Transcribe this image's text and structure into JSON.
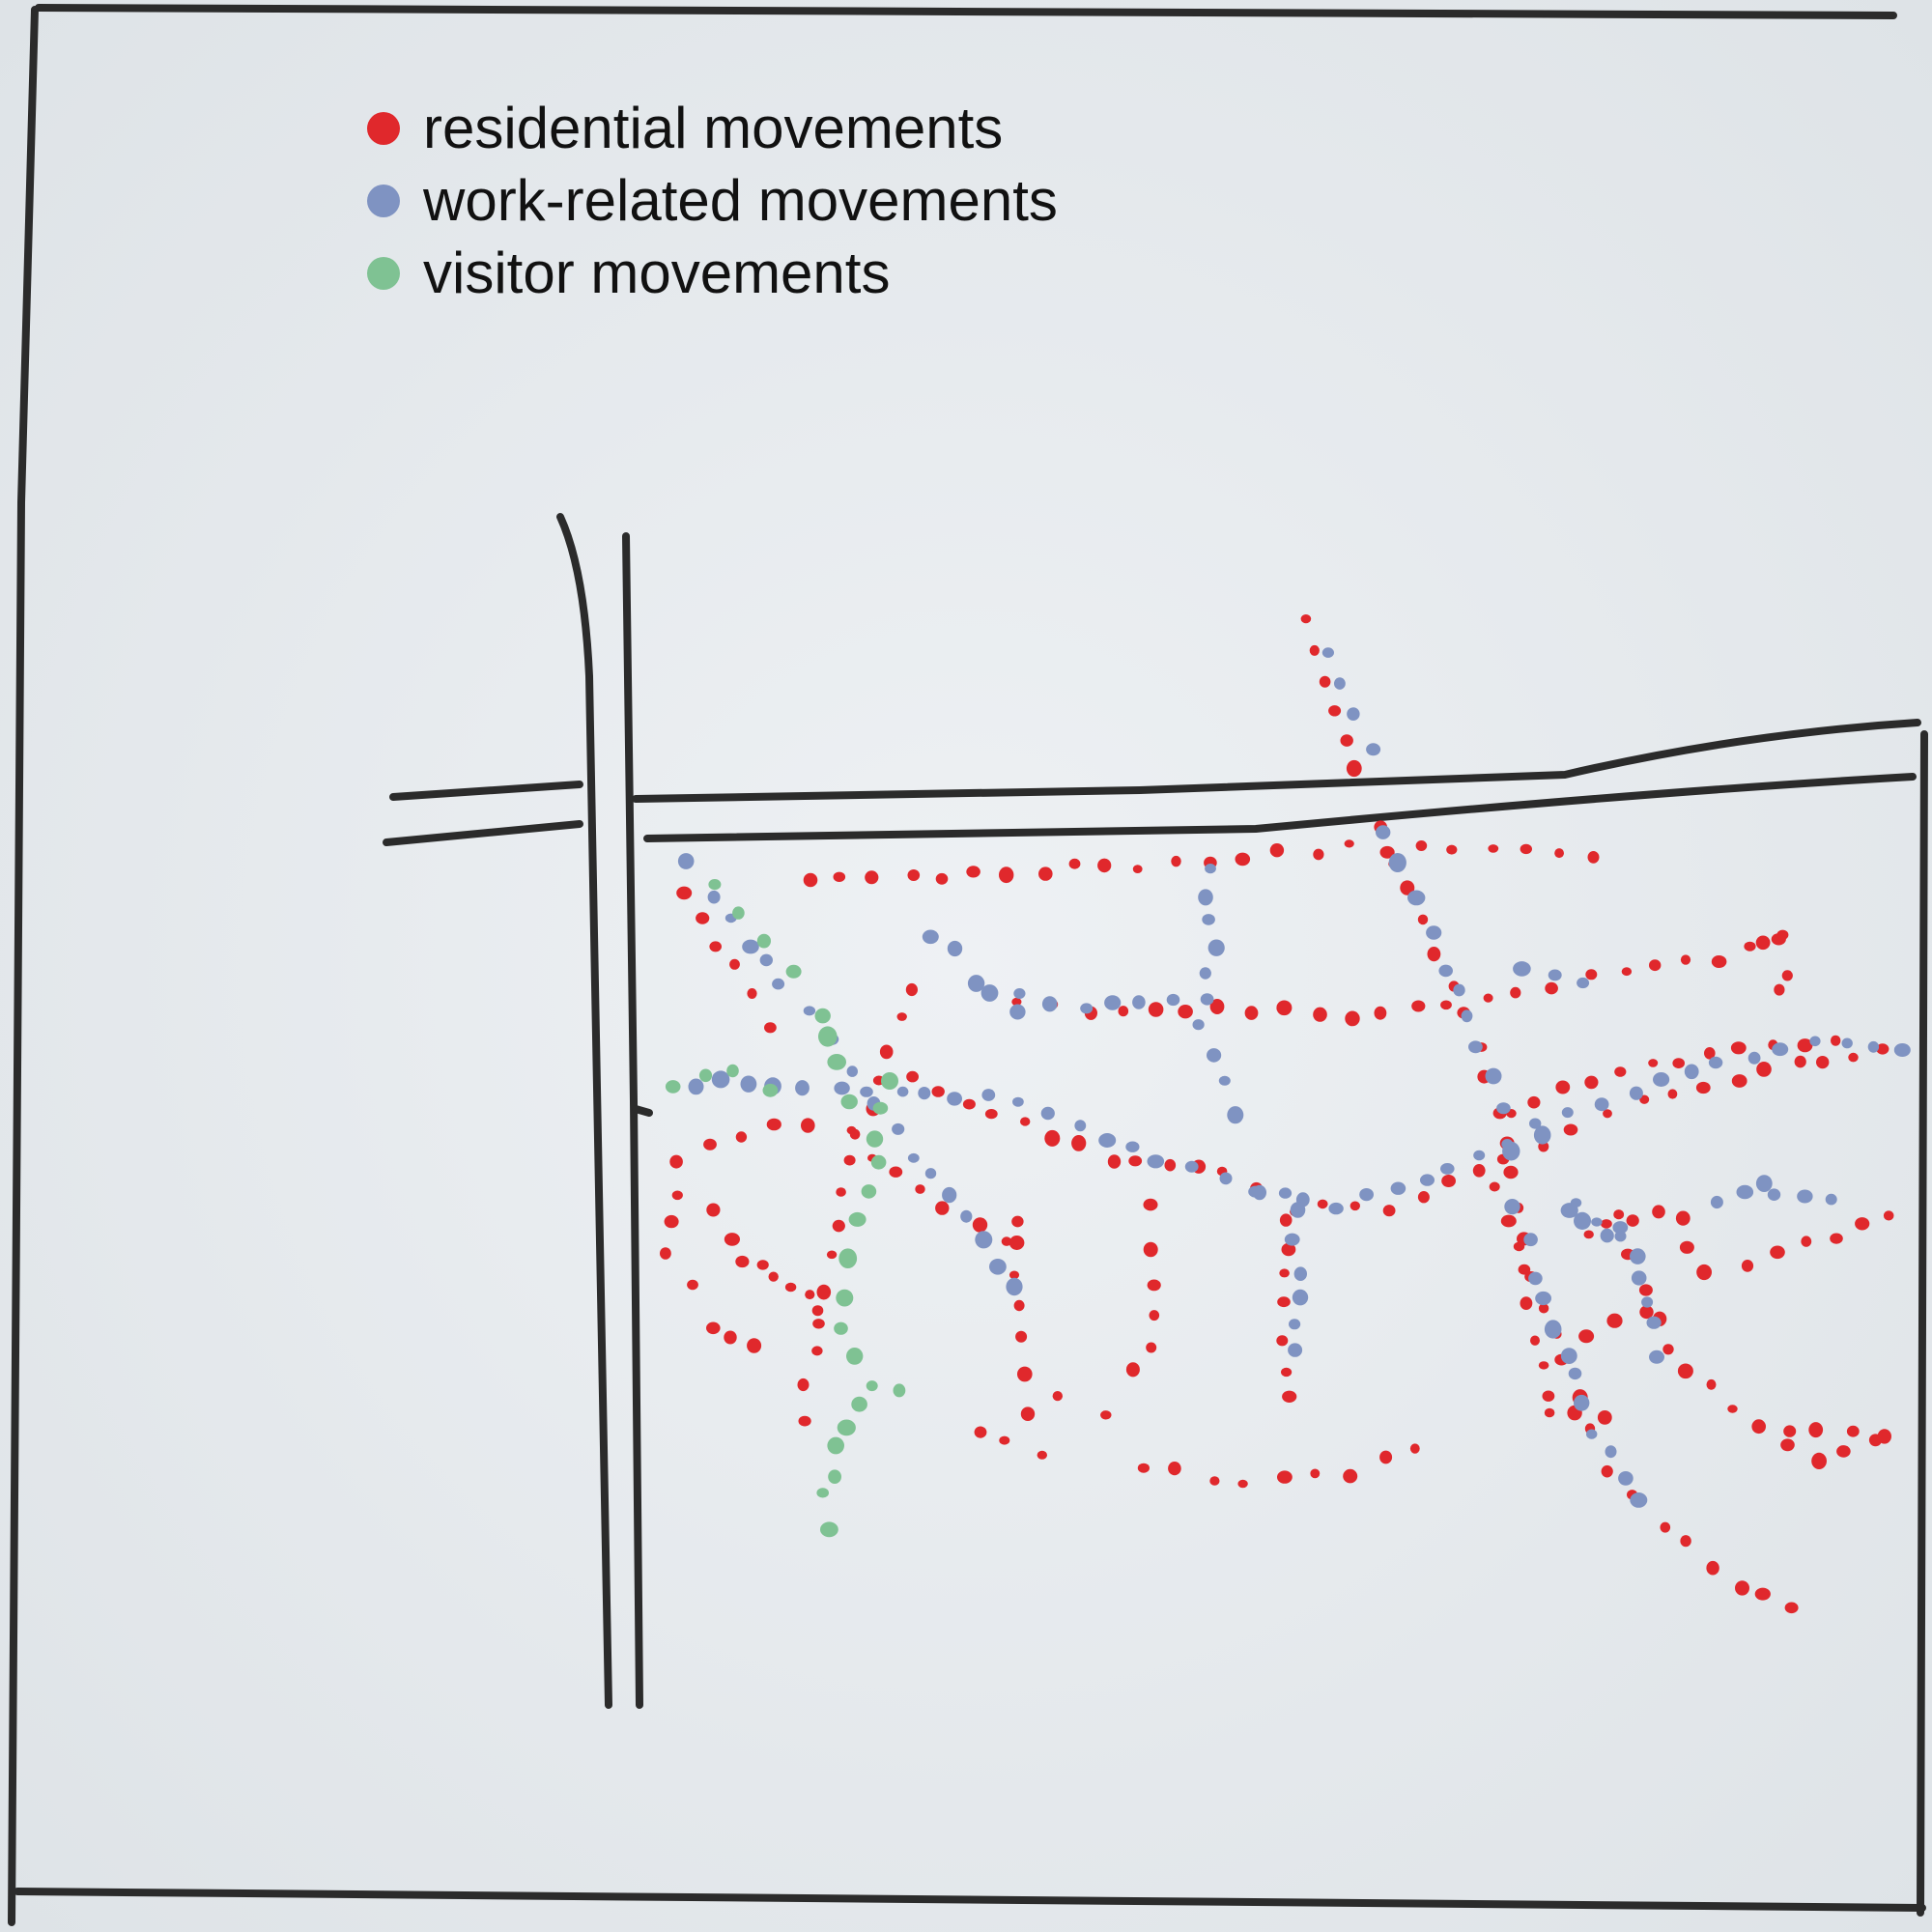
{
  "legend": [
    {
      "key": "residential",
      "label": "residential movements",
      "color": "#e0282c"
    },
    {
      "key": "work",
      "label": "work-related movements",
      "color": "#7f93c2"
    },
    {
      "key": "visitor",
      "label": "visitor movements",
      "color": "#7fc293"
    }
  ],
  "colors": {
    "paper": "#e9edf0",
    "ink": "#2b2b2b"
  }
}
